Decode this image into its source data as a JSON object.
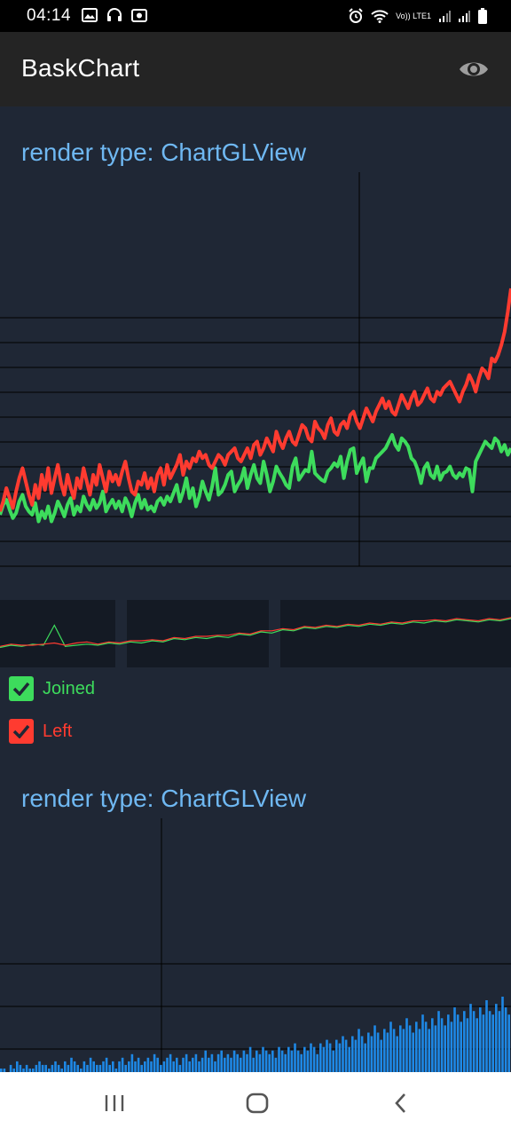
{
  "status_bar": {
    "time": "04:14",
    "left_icons": [
      "image-icon",
      "headset-icon",
      "camera-icon"
    ],
    "right_icons": [
      "alarm-icon",
      "wifi-icon",
      "lte-icon",
      "signal-icon",
      "signal-icon",
      "battery-icon"
    ],
    "lte_label": "Vo)) LTE1"
  },
  "app_bar": {
    "title": "BaskChart",
    "action_icon": "eye-icon"
  },
  "charts": {
    "top_title": "render type: ChartGLView",
    "bottom_title": "render type: ChartGLView"
  },
  "legend": [
    {
      "label": "Joined",
      "color": "#3ddc5c",
      "checked": true
    },
    {
      "label": "Left",
      "color": "#ff3b30",
      "checked": true
    }
  ],
  "colors": {
    "background": "#1f2735",
    "joined": "#3ddc5c",
    "left": "#ff3b30",
    "bars": "#1e88e5",
    "title": "#6fb8f2",
    "grid": "#000000"
  },
  "chart_data": [
    {
      "type": "line",
      "title": "",
      "grid": true,
      "xlabel": "",
      "ylabel": "",
      "series": [
        {
          "name": "Joined",
          "values": [
            16,
            22,
            25,
            19,
            14,
            17,
            24,
            28,
            21,
            18,
            16,
            23,
            12,
            18,
            14,
            21,
            12,
            17,
            24,
            20,
            15,
            22,
            26,
            16,
            21,
            18,
            27,
            22,
            19,
            25,
            20,
            23,
            30,
            18,
            22,
            25,
            20,
            24,
            18,
            26,
            22,
            15,
            23,
            28,
            20,
            25,
            19,
            21,
            18,
            24,
            26,
            22,
            27,
            24,
            29,
            34,
            24,
            30,
            38,
            26,
            32,
            21,
            27,
            36,
            30,
            25,
            33,
            44,
            28,
            30,
            34,
            40,
            42,
            30,
            34,
            37,
            44,
            32,
            40,
            46,
            38,
            35,
            48,
            40,
            30,
            36,
            45,
            41,
            38,
            34,
            32,
            45,
            50,
            37,
            40,
            43,
            42,
            54,
            41,
            39,
            37,
            36,
            42,
            44,
            47,
            45,
            51,
            38,
            48,
            55,
            56,
            41,
            46,
            50,
            36,
            44,
            44,
            50,
            52,
            54,
            56,
            60,
            64,
            58,
            55,
            62,
            60,
            57,
            50,
            48,
            43,
            35,
            44,
            47,
            40,
            38,
            45,
            37,
            41,
            42,
            45,
            40,
            38,
            41,
            39,
            44,
            43,
            30,
            48,
            52,
            56,
            60,
            58,
            56,
            62,
            60,
            54,
            58,
            52,
            56
          ]
        },
        {
          "name": "Left",
          "values": [
            18,
            24,
            32,
            26,
            20,
            30,
            38,
            44,
            36,
            28,
            22,
            34,
            26,
            40,
            31,
            44,
            29,
            38,
            46,
            35,
            28,
            40,
            32,
            26,
            38,
            32,
            44,
            36,
            28,
            40,
            34,
            46,
            38,
            30,
            42,
            36,
            40,
            34,
            42,
            48,
            38,
            30,
            28,
            36,
            34,
            41,
            32,
            38,
            30,
            40,
            44,
            34,
            46,
            38,
            42,
            46,
            52,
            40,
            48,
            44,
            50,
            48,
            54,
            50,
            52,
            46,
            44,
            48,
            52,
            50,
            46,
            52,
            54,
            56,
            50,
            48,
            52,
            56,
            50,
            58,
            60,
            52,
            56,
            62,
            58,
            54,
            66,
            60,
            56,
            62,
            66,
            60,
            58,
            64,
            70,
            68,
            62,
            60,
            72,
            68,
            66,
            62,
            70,
            74,
            66,
            64,
            70,
            72,
            68,
            76,
            78,
            72,
            68,
            74,
            80,
            76,
            72,
            78,
            82,
            86,
            80,
            84,
            78,
            76,
            82,
            88,
            84,
            80,
            86,
            90,
            82,
            84,
            88,
            92,
            86,
            84,
            90,
            88,
            92,
            94,
            96,
            92,
            88,
            84,
            90,
            94,
            100,
            96,
            90,
            98,
            104,
            102,
            98,
            110,
            108,
            112,
            118,
            126,
            138,
            152
          ]
        }
      ]
    },
    {
      "type": "line",
      "title": "",
      "grid": false,
      "series": [
        {
          "name": "Joined",
          "values": [
            10,
            12,
            11,
            13,
            12,
            30,
            11,
            12,
            13,
            12,
            14,
            13,
            15,
            14,
            16,
            15,
            18,
            17,
            19,
            18,
            20,
            19,
            22,
            21,
            24,
            23,
            26,
            25,
            28,
            27,
            29,
            28,
            30,
            29,
            31,
            30,
            32,
            31,
            33,
            32,
            34,
            33,
            35,
            34,
            33,
            35,
            34,
            36
          ]
        },
        {
          "name": "Left",
          "values": [
            11,
            13,
            12,
            12,
            13,
            14,
            12,
            14,
            15,
            13,
            15,
            14,
            16,
            16,
            17,
            16,
            19,
            18,
            20,
            20,
            21,
            21,
            23,
            22,
            25,
            25,
            27,
            26,
            29,
            28,
            30,
            29,
            31,
            30,
            32,
            31,
            33,
            32,
            34,
            34,
            35,
            34,
            36,
            35,
            34,
            36,
            35,
            37
          ]
        }
      ]
    },
    {
      "type": "bar",
      "title": "",
      "grid": true,
      "series": [
        {
          "name": "",
          "values": [
            1,
            1,
            0,
            2,
            1,
            3,
            2,
            1,
            2,
            1,
            1,
            2,
            3,
            2,
            2,
            1,
            2,
            3,
            2,
            1,
            3,
            2,
            4,
            3,
            2,
            1,
            3,
            2,
            4,
            3,
            2,
            2,
            3,
            4,
            2,
            3,
            1,
            3,
            4,
            2,
            3,
            5,
            3,
            4,
            2,
            3,
            4,
            3,
            5,
            4,
            2,
            3,
            4,
            5,
            3,
            4,
            2,
            4,
            5,
            3,
            4,
            5,
            3,
            4,
            6,
            4,
            5,
            3,
            5,
            6,
            4,
            5,
            4,
            6,
            5,
            4,
            6,
            5,
            7,
            4,
            6,
            5,
            7,
            6,
            5,
            6,
            4,
            7,
            6,
            5,
            7,
            6,
            8,
            6,
            5,
            7,
            6,
            8,
            7,
            5,
            8,
            7,
            9,
            8,
            6,
            9,
            8,
            10,
            9,
            7,
            10,
            9,
            12,
            10,
            8,
            11,
            10,
            13,
            11,
            9,
            12,
            11,
            14,
            12,
            10,
            13,
            12,
            15,
            13,
            11,
            14,
            12,
            16,
            14,
            12,
            15,
            13,
            17,
            15,
            13,
            16,
            14,
            18,
            16,
            14,
            17,
            15,
            19,
            17,
            15,
            18,
            16,
            20,
            17,
            16,
            19,
            17,
            21,
            18,
            16
          ]
        }
      ]
    }
  ]
}
